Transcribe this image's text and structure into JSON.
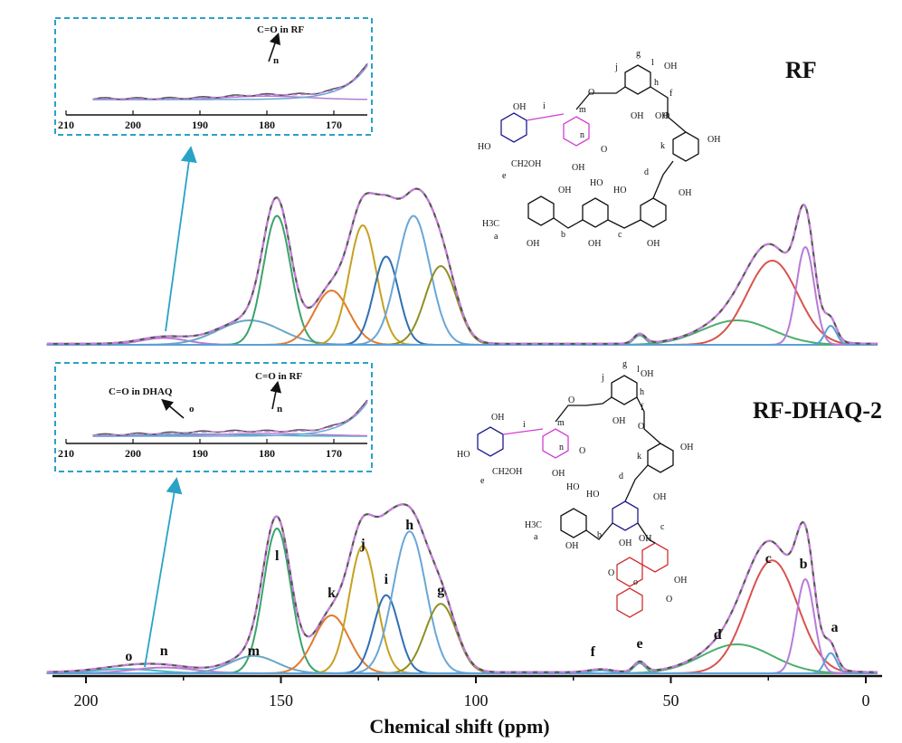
{
  "chart_data": {
    "type": "line",
    "xlabel": "Chemical shift (ppm)",
    "x_ticks": [
      "200",
      "150",
      "100",
      "50",
      "0"
    ],
    "xlim": [
      210,
      -3
    ],
    "panels": [
      {
        "name": "RF",
        "title": "RF",
        "series": [
          {
            "name": "",
            "color": "#555555",
            "role": "experimental",
            "points": [
              [
                205,
                0.01
              ],
              [
                185,
                0.02
              ],
              [
                180,
                0.06
              ],
              [
                175,
                0.03
              ],
              [
                168,
                0.08
              ],
              [
                160,
                0.2
              ],
              [
                151,
                0.98
              ],
              [
                145,
                0.45
              ],
              [
                140,
                0.28
              ],
              [
                132,
                0.8
              ],
              [
                128,
                0.93
              ],
              [
                124,
                1.0
              ],
              [
                118,
                1.13
              ],
              [
                113,
                0.98
              ],
              [
                107,
                0.45
              ],
              [
                100,
                0.03
              ],
              [
                90,
                0.01
              ],
              [
                62,
                0.02
              ],
              [
                58,
                0.1
              ],
              [
                55,
                0.02
              ],
              [
                45,
                0.08
              ],
              [
                35,
                0.2
              ],
              [
                30,
                0.35
              ],
              [
                24,
                0.7
              ],
              [
                21,
                0.55
              ],
              [
                16,
                1.18
              ],
              [
                13,
                0.6
              ],
              [
                10,
                0.18
              ],
              [
                5,
                0.02
              ],
              [
                0,
                0.01
              ]
            ]
          },
          {
            "name": "",
            "color": "#c77ddb",
            "role": "fit",
            "dashed": true,
            "points": [
              [
                205,
                0.01
              ],
              [
                185,
                0.02
              ],
              [
                180,
                0.06
              ],
              [
                175,
                0.03
              ],
              [
                168,
                0.08
              ],
              [
                160,
                0.2
              ],
              [
                151,
                0.98
              ],
              [
                145,
                0.45
              ],
              [
                140,
                0.28
              ],
              [
                132,
                0.8
              ],
              [
                128,
                0.93
              ],
              [
                124,
                1.0
              ],
              [
                118,
                1.13
              ],
              [
                113,
                0.98
              ],
              [
                107,
                0.45
              ],
              [
                100,
                0.03
              ],
              [
                90,
                0.01
              ],
              [
                62,
                0.02
              ],
              [
                58,
                0.1
              ],
              [
                55,
                0.02
              ],
              [
                45,
                0.08
              ],
              [
                35,
                0.2
              ],
              [
                30,
                0.35
              ],
              [
                24,
                0.7
              ],
              [
                21,
                0.55
              ],
              [
                16,
                1.18
              ],
              [
                13,
                0.6
              ],
              [
                10,
                0.18
              ],
              [
                5,
                0.02
              ],
              [
                0,
                0.01
              ]
            ]
          }
        ],
        "components": [
          {
            "id": "n",
            "center": 180,
            "height": 0.05,
            "width": 6,
            "color": "#b67bd0"
          },
          {
            "id": "m",
            "center": 158,
            "height": 0.18,
            "width": 8,
            "color": "#6aa6c8"
          },
          {
            "id": "l",
            "center": 151,
            "height": 0.95,
            "width": 3.5,
            "color": "#3aa36b"
          },
          {
            "id": "k",
            "center": 137,
            "height": 0.4,
            "width": 4.5,
            "color": "#e07a2d"
          },
          {
            "id": "j",
            "center": 129,
            "height": 0.88,
            "width": 3.5,
            "color": "#c8a020"
          },
          {
            "id": "i",
            "center": 123,
            "height": 0.65,
            "width": 3.2,
            "color": "#2f6fb5"
          },
          {
            "id": "h",
            "center": 116,
            "height": 0.95,
            "width": 4.2,
            "color": "#6aa6d6"
          },
          {
            "id": "g",
            "center": 109,
            "height": 0.58,
            "width": 4.0,
            "color": "#8f8f23"
          },
          {
            "id": "e",
            "center": 58,
            "height": 0.07,
            "width": 1.5,
            "color": "#5aa89a"
          },
          {
            "id": "d",
            "center": 33,
            "height": 0.18,
            "width": 9,
            "color": "#4caf6e"
          },
          {
            "id": "c",
            "center": 24,
            "height": 0.62,
            "width": 6.5,
            "color": "#d9534f"
          },
          {
            "id": "b",
            "center": 15.5,
            "height": 0.72,
            "width": 2.3,
            "color": "#b97ad9"
          },
          {
            "id": "a",
            "center": 9,
            "height": 0.14,
            "width": 1.5,
            "color": "#5aa0d6"
          }
        ],
        "inset": {
          "x_ticks": [
            "210",
            "200",
            "190",
            "180",
            "170"
          ],
          "annotations": [
            {
              "text": "C=O in RF"
            },
            {
              "text": "n"
            }
          ]
        }
      },
      {
        "name": "RF-DHAQ-2",
        "title": "RF-DHAQ-2",
        "series": [
          {
            "name": "",
            "color": "#555555",
            "role": "experimental",
            "points": [
              [
                205,
                0.01
              ],
              [
                195,
                0.03
              ],
              [
                185,
                0.05
              ],
              [
                175,
                0.07
              ],
              [
                165,
                0.12
              ],
              [
                160,
                0.3
              ],
              [
                151,
                1.0
              ],
              [
                145,
                0.5
              ],
              [
                140,
                0.35
              ],
              [
                132,
                0.86
              ],
              [
                128,
                1.02
              ],
              [
                124,
                1.05
              ],
              [
                118,
                1.1
              ],
              [
                113,
                0.95
              ],
              [
                107,
                0.45
              ],
              [
                100,
                0.03
              ],
              [
                90,
                0.01
              ],
              [
                62,
                0.02
              ],
              [
                58,
                0.1
              ],
              [
                55,
                0.02
              ],
              [
                45,
                0.08
              ],
              [
                35,
                0.2
              ],
              [
                30,
                0.35
              ],
              [
                24,
                0.7
              ],
              [
                21,
                0.55
              ],
              [
                16,
                1.08
              ],
              [
                13,
                0.6
              ],
              [
                10,
                0.18
              ],
              [
                5,
                0.02
              ],
              [
                0,
                0.01
              ]
            ]
          },
          {
            "name": "",
            "color": "#c77ddb",
            "role": "fit",
            "dashed": true,
            "points": [
              [
                205,
                0.01
              ],
              [
                195,
                0.03
              ],
              [
                185,
                0.05
              ],
              [
                175,
                0.07
              ],
              [
                165,
                0.12
              ],
              [
                160,
                0.3
              ],
              [
                151,
                1.0
              ],
              [
                145,
                0.5
              ],
              [
                140,
                0.35
              ],
              [
                132,
                0.86
              ],
              [
                128,
                1.02
              ],
              [
                124,
                1.05
              ],
              [
                118,
                1.1
              ],
              [
                113,
                0.95
              ],
              [
                107,
                0.45
              ],
              [
                100,
                0.03
              ],
              [
                90,
                0.01
              ],
              [
                62,
                0.02
              ],
              [
                58,
                0.1
              ],
              [
                55,
                0.02
              ],
              [
                45,
                0.08
              ],
              [
                35,
                0.2
              ],
              [
                30,
                0.35
              ],
              [
                24,
                0.7
              ],
              [
                21,
                0.55
              ],
              [
                16,
                1.08
              ],
              [
                13,
                0.6
              ],
              [
                10,
                0.18
              ],
              [
                5,
                0.02
              ],
              [
                0,
                0.01
              ]
            ]
          }
        ],
        "components": [
          {
            "id": "o",
            "center": 190,
            "height": 0.03,
            "width": 8,
            "color": "#43b7c4"
          },
          {
            "id": "n",
            "center": 180,
            "height": 0.04,
            "width": 8,
            "color": "#b67bd0"
          },
          {
            "id": "m",
            "center": 157,
            "height": 0.12,
            "width": 6,
            "color": "#6aa6c8"
          },
          {
            "id": "l",
            "center": 151,
            "height": 1.0,
            "width": 3.5,
            "color": "#3aa36b"
          },
          {
            "id": "k",
            "center": 137,
            "height": 0.4,
            "width": 4.5,
            "color": "#e07a2d"
          },
          {
            "id": "j",
            "center": 129,
            "height": 0.88,
            "width": 3.5,
            "color": "#c8a020"
          },
          {
            "id": "i",
            "center": 123,
            "height": 0.54,
            "width": 3.2,
            "color": "#2f6fb5"
          },
          {
            "id": "h",
            "center": 117,
            "height": 0.98,
            "width": 4.2,
            "color": "#6aa6d6"
          },
          {
            "id": "g",
            "center": 109,
            "height": 0.48,
            "width": 4.0,
            "color": "#8f8f23"
          },
          {
            "id": "f",
            "center": 68,
            "height": 0.02,
            "width": 3,
            "color": "#43b7c4"
          },
          {
            "id": "e",
            "center": 58,
            "height": 0.07,
            "width": 1.5,
            "color": "#5aa89a"
          },
          {
            "id": "d",
            "center": 33,
            "height": 0.2,
            "width": 9,
            "color": "#4caf6e"
          },
          {
            "id": "c",
            "center": 24,
            "height": 0.78,
            "width": 6.5,
            "color": "#d9534f"
          },
          {
            "id": "b",
            "center": 15.5,
            "height": 0.65,
            "width": 2.3,
            "color": "#b97ad9"
          },
          {
            "id": "a",
            "center": 9,
            "height": 0.14,
            "width": 1.5,
            "color": "#5aa0d6"
          }
        ],
        "inset": {
          "x_ticks": [
            "210",
            "200",
            "190",
            "180",
            "170"
          ],
          "annotations": [
            {
              "text": "C=O in DHAQ"
            },
            {
              "text": "o"
            },
            {
              "text": "C=O in RF"
            },
            {
              "text": "n"
            }
          ]
        }
      }
    ]
  },
  "structure_labels": {
    "rf": {
      "oh": "OH",
      "ho": "HO",
      "ch2oh": "CH2OH",
      "h3c": "H3C",
      "o": "O",
      "letters": [
        "a",
        "b",
        "c",
        "d",
        "e",
        "f",
        "g",
        "h",
        "i",
        "j",
        "k",
        "l",
        "m",
        "n"
      ]
    },
    "dhaq": {
      "oh": "OH",
      "ho": "HO",
      "ch2oh": "CH2OH",
      "h3c": "H3C",
      "o": "O",
      "letters": [
        "a",
        "b",
        "c",
        "d",
        "e",
        "f",
        "g",
        "h",
        "i",
        "j",
        "k",
        "l",
        "m",
        "n",
        "o"
      ]
    }
  },
  "colors": {
    "axis": "#111111",
    "inset_border": "#2aa2c6",
    "arrow": "#2aa2c6",
    "struct_blue": "#1c1c8f",
    "struct_magenta": "#d33fd3",
    "struct_red": "#d12f2f"
  }
}
